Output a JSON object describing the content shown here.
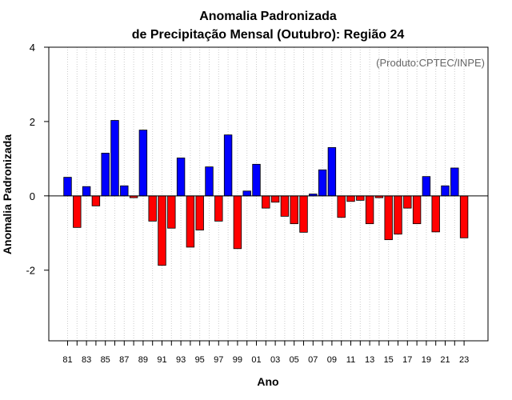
{
  "chart_data": {
    "type": "bar",
    "title_line1": "Anomalia Padronizada",
    "title_line2": "de Precipitação Mensal (Outubro): Região 24",
    "credit": "(Produto:CPTEC/INPE)",
    "xlabel": "Ano",
    "ylabel": "Anomalia Padronizada",
    "ylim": [
      -3.9,
      4.0
    ],
    "yticks": [
      -2,
      0,
      2,
      4
    ],
    "grid": "vertical dotted",
    "positive_color": "#0000ff",
    "negative_color": "#ff0000",
    "x_tick_labels": [
      "81",
      "83",
      "85",
      "87",
      "89",
      "91",
      "93",
      "95",
      "97",
      "99",
      "01",
      "03",
      "05",
      "07",
      "09",
      "11",
      "13",
      "15",
      "17",
      "19",
      "21",
      "23"
    ],
    "categories": [
      "1981",
      "1982",
      "1983",
      "1984",
      "1985",
      "1986",
      "1987",
      "1988",
      "1989",
      "1990",
      "1991",
      "1992",
      "1993",
      "1994",
      "1995",
      "1996",
      "1997",
      "1998",
      "1999",
      "2000",
      "2001",
      "2002",
      "2003",
      "2004",
      "2005",
      "2006",
      "2007",
      "2008",
      "2009",
      "2010",
      "2011",
      "2012",
      "2013",
      "2014",
      "2015",
      "2016",
      "2017",
      "2018",
      "2019",
      "2020",
      "2021",
      "2022",
      "2023"
    ],
    "values": [
      0.5,
      -0.85,
      0.25,
      -0.27,
      1.15,
      2.03,
      0.27,
      -0.05,
      1.77,
      -0.68,
      -1.87,
      -0.87,
      1.02,
      -1.38,
      -0.92,
      0.78,
      -0.68,
      1.64,
      -1.42,
      0.13,
      0.85,
      -0.33,
      -0.17,
      -0.55,
      -0.75,
      -0.98,
      0.05,
      0.7,
      1.3,
      -0.58,
      -0.15,
      -0.12,
      -0.75,
      -0.05,
      -1.18,
      -1.03,
      -0.33,
      -0.75,
      0.52,
      -0.97,
      0.27,
      0.75,
      -1.13
    ]
  }
}
